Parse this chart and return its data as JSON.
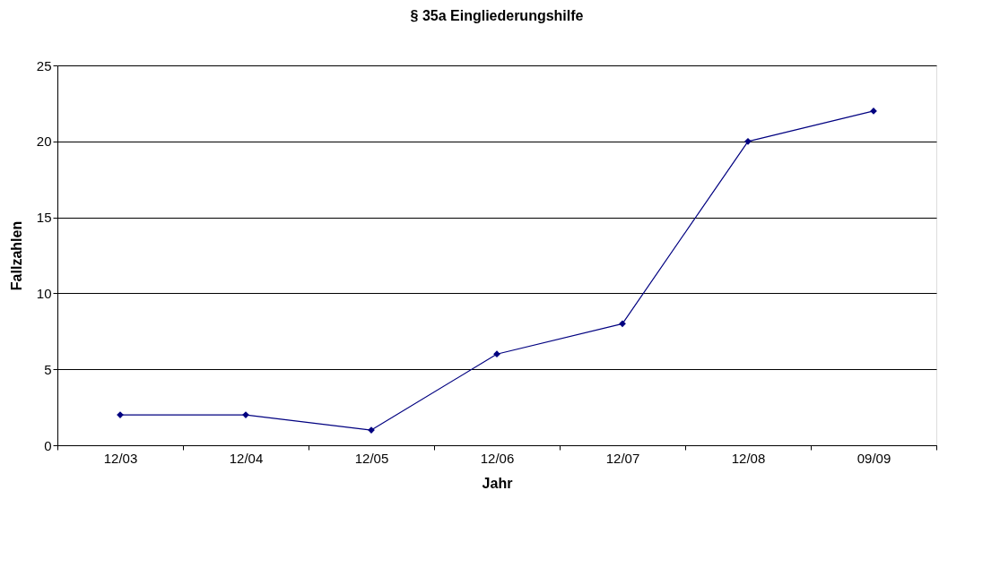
{
  "chart_data": {
    "type": "line",
    "title": "§ 35a Eingliederungshilfe",
    "xlabel": "Jahr",
    "ylabel": "Fallzahlen",
    "categories": [
      "12/03",
      "12/04",
      "12/05",
      "12/06",
      "12/07",
      "12/08",
      "09/09"
    ],
    "series": [
      {
        "color": "#000080",
        "values": [
          2,
          2,
          1,
          6,
          8,
          20,
          22
        ]
      }
    ],
    "ylim": [
      0,
      25
    ],
    "yticks": [
      0,
      5,
      10,
      15,
      20,
      25
    ],
    "grid": "y",
    "legend": false,
    "marker": "diamond",
    "line_style": "solid"
  }
}
